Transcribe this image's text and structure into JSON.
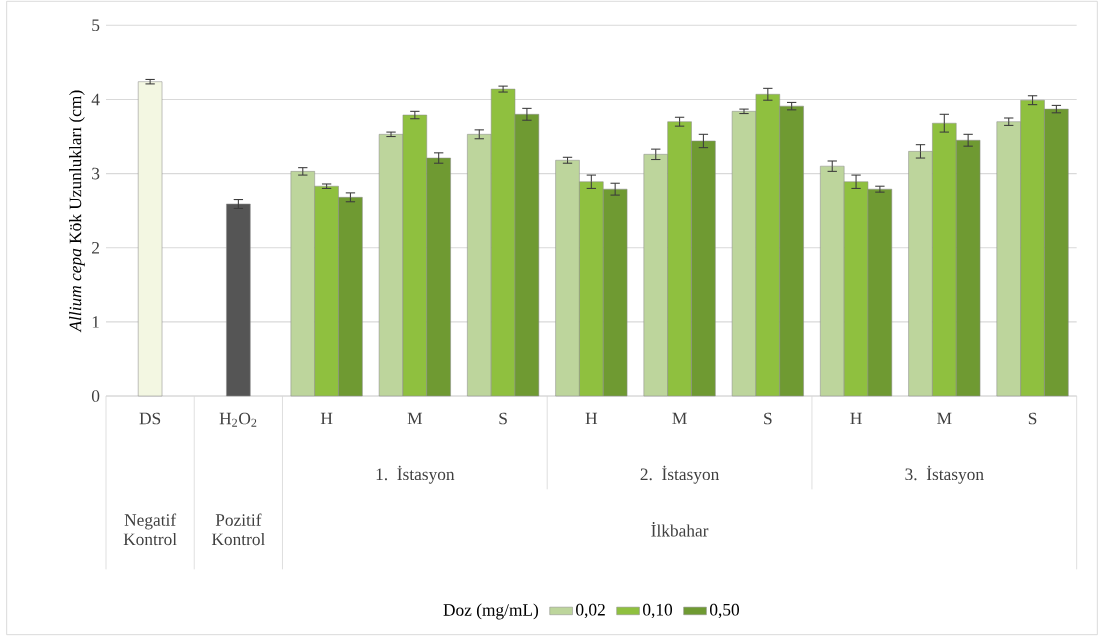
{
  "chart_data": {
    "type": "bar",
    "ylabel": "*Allium cepa* Kök Uzunlukları (cm)",
    "categories": [
      "DS",
      "H$_{2}$O$_{2}$",
      "H",
      "M",
      "S",
      "H",
      "M",
      "S",
      "H",
      "M",
      "S"
    ],
    "series": [
      {
        "color": "#f3f7e2",
        "values": [
          4.24,
          null,
          null,
          null,
          null,
          null,
          null,
          null,
          null,
          null,
          null
        ],
        "errors": [
          0.03,
          null,
          null,
          null,
          null,
          null,
          null,
          null,
          null,
          null,
          null
        ]
      },
      {
        "color": "#555555",
        "values": [
          null,
          2.59,
          null,
          null,
          null,
          null,
          null,
          null,
          null,
          null,
          null
        ],
        "errors": [
          null,
          0.06,
          null,
          null,
          null,
          null,
          null,
          null,
          null,
          null,
          null
        ]
      },
      {
        "name": "0,02",
        "color": "#bdd59c",
        "values": [
          null,
          null,
          3.03,
          3.53,
          3.53,
          3.18,
          3.26,
          3.84,
          3.1,
          3.3,
          3.7
        ],
        "errors": [
          null,
          null,
          0.05,
          0.03,
          0.06,
          0.04,
          0.07,
          0.03,
          0.07,
          0.09,
          0.05
        ]
      },
      {
        "name": "0,10",
        "color": "#8fc03f",
        "values": [
          null,
          null,
          2.83,
          3.79,
          4.14,
          2.89,
          3.7,
          4.07,
          2.89,
          3.68,
          3.99
        ],
        "errors": [
          null,
          null,
          0.03,
          0.05,
          0.04,
          0.09,
          0.06,
          0.08,
          0.09,
          0.12,
          0.06
        ]
      },
      {
        "name": "0,50",
        "color": "#6f9a32",
        "values": [
          null,
          null,
          2.68,
          3.21,
          3.8,
          2.79,
          3.44,
          3.91,
          2.79,
          3.45,
          3.87
        ],
        "errors": [
          null,
          null,
          0.06,
          0.07,
          0.08,
          0.08,
          0.09,
          0.05,
          0.04,
          0.08,
          0.05
        ]
      }
    ],
    "ylim": [
      0,
      5
    ],
    "yticks": [
      0,
      1,
      2,
      3,
      4,
      5
    ],
    "grid": "y",
    "legend": "bottom",
    "legend_title": "Doz (mg/mL)",
    "annotations": [
      "1. İstasyon",
      "2. İstasyon",
      "3. İstasyon",
      "Negatif Kontrol",
      "Pozitif Kontrol",
      "İlkbahar"
    ]
  }
}
